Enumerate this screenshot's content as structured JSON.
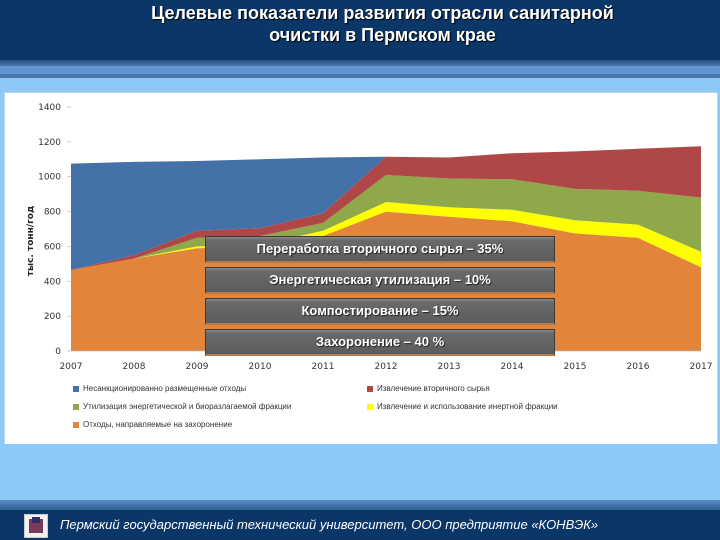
{
  "header": {
    "title_line1": "Целевые показатели развития отрасли санитарной",
    "title_line2": "очистки в Пермском крае"
  },
  "overlay": {
    "items": [
      "Переработка вторичного сырья – 35%",
      "Энергетическая утилизация – 10%",
      "Компостирование – 15%",
      "Захоронение – 40 %"
    ]
  },
  "footer": {
    "text": "Пермский государственный технический университет, ООО предприятие «КОНВЭК»",
    "logo": "university-logo-icon"
  },
  "legend": {
    "items": [
      {
        "label": "Несанкционированно размещенные отходы",
        "color": "#4472a8"
      },
      {
        "label": "Извлечение вторичного сырья",
        "color": "#b04747"
      },
      {
        "label": "Утилизация энергетической и биоразлагаемой фракции",
        "color": "#8ea84a"
      },
      {
        "label": "Извлечение и использование инертной фракции",
        "color": "#ffff00"
      },
      {
        "label": "Отходы, направляемые на захоронение",
        "color": "#e2853a"
      }
    ]
  },
  "chart_data": {
    "type": "area",
    "stacked": true,
    "title": "Целевые показатели развития отрасли санитарной очистки в Пермском крае",
    "xlabel": "",
    "ylabel": "тыс. тонн/год",
    "ylim": [
      0,
      1400
    ],
    "yticks": [
      0,
      200,
      400,
      600,
      800,
      1000,
      1200,
      1400
    ],
    "categories": [
      "2007",
      "2008",
      "2009",
      "2010",
      "2011",
      "2012",
      "2013",
      "2014",
      "2015",
      "2016",
      "2017"
    ],
    "grid": false,
    "legend_position": "bottom",
    "series": [
      {
        "name": "Отходы, направляемые на захоронение",
        "color": "#e2853a",
        "values": [
          465,
          530,
          590,
          600,
          660,
          800,
          770,
          745,
          675,
          650,
          480
        ]
      },
      {
        "name": "Извлечение и использование инертной фракции",
        "color": "#ffff00",
        "values": [
          0,
          0,
          10,
          10,
          30,
          55,
          55,
          65,
          75,
          75,
          90
        ]
      },
      {
        "name": "Утилизация энергетической и биоразлагаемой фракции",
        "color": "#8ea84a",
        "values": [
          0,
          0,
          50,
          50,
          45,
          155,
          165,
          175,
          180,
          195,
          310
        ]
      },
      {
        "name": "Извлечение вторичного сырья",
        "color": "#b04747",
        "values": [
          0,
          20,
          40,
          45,
          55,
          105,
          120,
          150,
          215,
          240,
          295
        ]
      },
      {
        "name": "Несанкционированно размещенные отходы",
        "color": "#4472a8",
        "values": [
          610,
          535,
          400,
          395,
          320,
          0,
          0,
          0,
          0,
          0,
          0
        ]
      }
    ],
    "annotations": [
      "Переработка вторичного сырья – 35%",
      "Энергетическая утилизация – 10%",
      "Компостирование – 15%",
      "Захоронение – 40 %"
    ]
  }
}
